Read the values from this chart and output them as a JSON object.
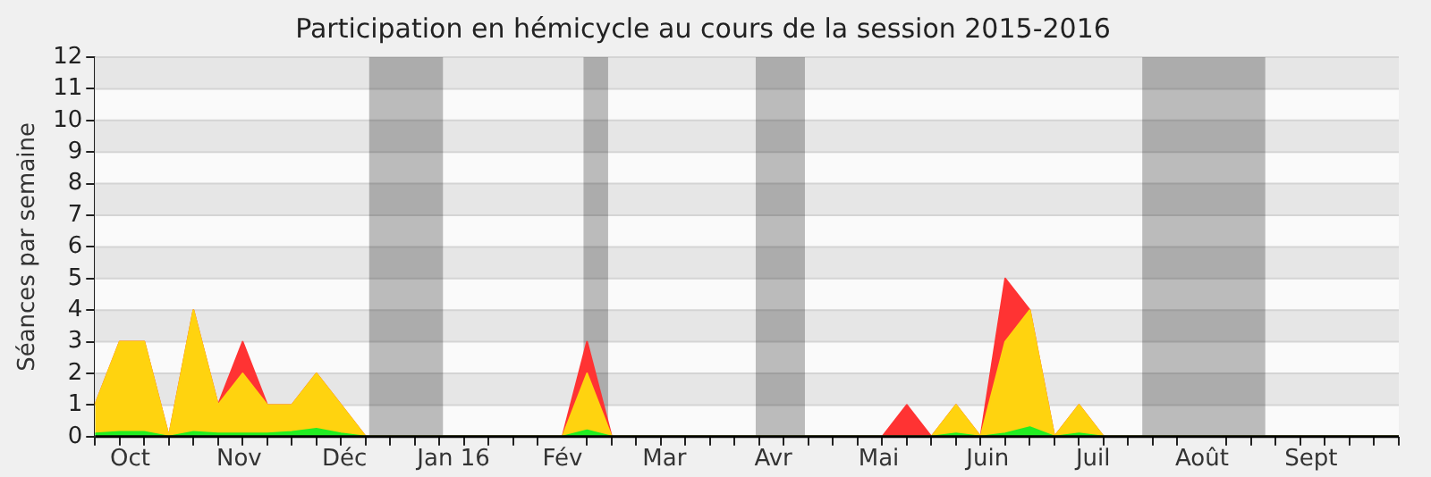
{
  "chart_data": {
    "type": "area",
    "title": "Participation en hémicycle au cours de la session 2015-2016",
    "ylabel": "Séances par semaine",
    "x": [
      "2015-09-21",
      "2015-09-28",
      "2015-10-05",
      "2015-10-12",
      "2015-10-19",
      "2015-10-26",
      "2015-11-02",
      "2015-11-09",
      "2015-11-16",
      "2015-11-23",
      "2015-11-30",
      "2015-12-07",
      "2015-12-14",
      "2015-12-21",
      "2015-12-28",
      "2016-01-04",
      "2016-01-11",
      "2016-01-18",
      "2016-01-25",
      "2016-02-01",
      "2016-02-08",
      "2016-02-15",
      "2016-02-22",
      "2016-02-29",
      "2016-03-07",
      "2016-03-14",
      "2016-03-21",
      "2016-03-28",
      "2016-04-04",
      "2016-04-11",
      "2016-04-18",
      "2016-04-25",
      "2016-05-02",
      "2016-05-09",
      "2016-05-16",
      "2016-05-23",
      "2016-05-30",
      "2016-06-06",
      "2016-06-13",
      "2016-06-20",
      "2016-06-27",
      "2016-07-04",
      "2016-07-11",
      "2016-07-18",
      "2016-07-25",
      "2016-08-01",
      "2016-08-08",
      "2016-08-15",
      "2016-08-22",
      "2016-08-29",
      "2016-09-05",
      "2016-09-12",
      "2016-09-19",
      "2016-09-26"
    ],
    "stacked": true,
    "series": [
      {
        "color": "#22ee22",
        "values": [
          0.1,
          0.15,
          0.15,
          0,
          0.15,
          0.1,
          0.1,
          0.1,
          0.15,
          0.25,
          0.1,
          0,
          0,
          0,
          0,
          0,
          0,
          0,
          0,
          0,
          0.2,
          0,
          0,
          0,
          0,
          0,
          0,
          0,
          0,
          0,
          0,
          0,
          0,
          0,
          0,
          0.1,
          0,
          0.1,
          0.3,
          0,
          0.1,
          0,
          0,
          0,
          0,
          0,
          0,
          0,
          0,
          0,
          0,
          0,
          0,
          0
        ]
      },
      {
        "color": "#ffd30f",
        "values": [
          0.9,
          2.85,
          2.85,
          0,
          3.85,
          0.9,
          1.9,
          0.9,
          0.85,
          1.75,
          0.9,
          0,
          0,
          0,
          0,
          0,
          0,
          0,
          0,
          0,
          1.8,
          0,
          0,
          0,
          0,
          0,
          0,
          0,
          0,
          0,
          0,
          0,
          0,
          0,
          0,
          0.9,
          0,
          2.9,
          3.7,
          0,
          0.9,
          0,
          0,
          0,
          0,
          0,
          0,
          0,
          0,
          0,
          0,
          0,
          0,
          0
        ]
      },
      {
        "color": "#ff3333",
        "values": [
          0,
          0,
          0,
          0,
          0,
          0,
          1,
          0,
          0,
          0,
          0,
          0,
          0,
          0,
          0,
          0,
          0,
          0,
          0,
          0,
          1,
          0,
          0,
          0,
          0,
          0,
          0,
          0,
          0,
          0,
          0,
          0,
          0,
          1,
          0,
          0,
          0,
          2,
          0,
          0,
          0,
          0,
          0,
          0,
          0,
          0,
          0,
          0,
          0,
          0,
          0,
          0,
          0,
          0
        ]
      }
    ],
    "xlim": [
      "2015-09-21",
      "2016-09-26"
    ],
    "xticks": [
      {
        "value": "2015-09-21",
        "label": null
      },
      {
        "value": "2015-09-28",
        "label": null
      },
      {
        "value": "2015-10-01",
        "label": "Oct"
      },
      {
        "value": "2015-10-05",
        "label": null
      },
      {
        "value": "2015-10-12",
        "label": null
      },
      {
        "value": "2015-10-19",
        "label": null
      },
      {
        "value": "2015-10-26",
        "label": null
      },
      {
        "value": "2015-11-01",
        "label": "Nov"
      },
      {
        "value": "2015-11-02",
        "label": null
      },
      {
        "value": "2015-11-09",
        "label": null
      },
      {
        "value": "2015-11-16",
        "label": null
      },
      {
        "value": "2015-11-23",
        "label": null
      },
      {
        "value": "2015-11-30",
        "label": null
      },
      {
        "value": "2015-12-01",
        "label": "Déc"
      },
      {
        "value": "2015-12-07",
        "label": null
      },
      {
        "value": "2015-12-14",
        "label": null
      },
      {
        "value": "2015-12-21",
        "label": null
      },
      {
        "value": "2015-12-28",
        "label": null
      },
      {
        "value": "2016-01-01",
        "label": "Jan 16"
      },
      {
        "value": "2016-01-04",
        "label": null
      },
      {
        "value": "2016-01-11",
        "label": null
      },
      {
        "value": "2016-01-18",
        "label": null
      },
      {
        "value": "2016-01-25",
        "label": null
      },
      {
        "value": "2016-02-01",
        "label": "Fév"
      },
      {
        "value": "2016-02-08",
        "label": null
      },
      {
        "value": "2016-02-15",
        "label": null
      },
      {
        "value": "2016-02-22",
        "label": null
      },
      {
        "value": "2016-02-29",
        "label": null
      },
      {
        "value": "2016-03-01",
        "label": "Mar"
      },
      {
        "value": "2016-03-07",
        "label": null
      },
      {
        "value": "2016-03-14",
        "label": null
      },
      {
        "value": "2016-03-21",
        "label": null
      },
      {
        "value": "2016-03-28",
        "label": null
      },
      {
        "value": "2016-04-01",
        "label": "Avr"
      },
      {
        "value": "2016-04-04",
        "label": null
      },
      {
        "value": "2016-04-11",
        "label": null
      },
      {
        "value": "2016-04-18",
        "label": null
      },
      {
        "value": "2016-04-25",
        "label": null
      },
      {
        "value": "2016-05-01",
        "label": "Mai"
      },
      {
        "value": "2016-05-02",
        "label": null
      },
      {
        "value": "2016-05-09",
        "label": null
      },
      {
        "value": "2016-05-16",
        "label": null
      },
      {
        "value": "2016-05-23",
        "label": null
      },
      {
        "value": "2016-05-30",
        "label": null
      },
      {
        "value": "2016-06-01",
        "label": "Juin"
      },
      {
        "value": "2016-06-06",
        "label": null
      },
      {
        "value": "2016-06-13",
        "label": null
      },
      {
        "value": "2016-06-20",
        "label": null
      },
      {
        "value": "2016-06-27",
        "label": null
      },
      {
        "value": "2016-07-01",
        "label": "Juil"
      },
      {
        "value": "2016-07-04",
        "label": null
      },
      {
        "value": "2016-07-11",
        "label": null
      },
      {
        "value": "2016-07-18",
        "label": null
      },
      {
        "value": "2016-07-25",
        "label": null
      },
      {
        "value": "2016-08-01",
        "label": "Août"
      },
      {
        "value": "2016-08-08",
        "label": null
      },
      {
        "value": "2016-08-15",
        "label": null
      },
      {
        "value": "2016-08-22",
        "label": null
      },
      {
        "value": "2016-08-29",
        "label": null
      },
      {
        "value": "2016-09-01",
        "label": "Sept"
      },
      {
        "value": "2016-09-05",
        "label": null
      },
      {
        "value": "2016-09-12",
        "label": null
      },
      {
        "value": "2016-09-19",
        "label": null
      },
      {
        "value": "2016-09-26",
        "label": null
      }
    ],
    "ylim": [
      0,
      12
    ],
    "yticks": [
      0,
      1,
      2,
      3,
      4,
      5,
      6,
      7,
      8,
      9,
      10,
      11,
      12
    ],
    "grid": "y",
    "bands": [
      {
        "axis": "x",
        "from": "2015-12-08",
        "to": "2015-12-29"
      },
      {
        "axis": "x",
        "from": "2016-02-07",
        "to": "2016-02-14"
      },
      {
        "axis": "x",
        "from": "2016-03-27",
        "to": "2016-04-10"
      },
      {
        "axis": "x",
        "from": "2016-07-15",
        "to": "2016-08-19"
      }
    ],
    "legend": false,
    "marker": "none"
  }
}
